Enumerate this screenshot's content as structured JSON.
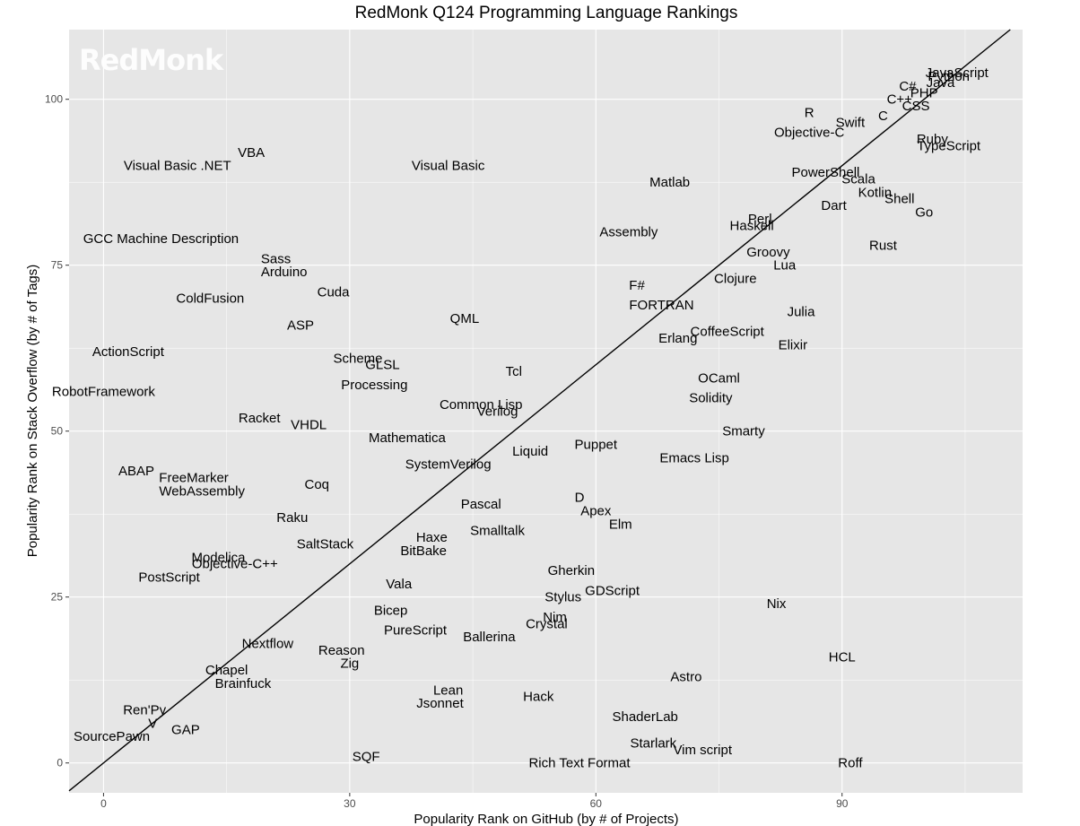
{
  "chart_data": {
    "type": "scatter",
    "title": "RedMonk Q124 Programming Language Rankings",
    "xlabel": "Popularity Rank on GitHub (by # of Projects)",
    "ylabel": "Popularity Rank on Stack Overflow (by # of Tags)",
    "watermark": "RedMonk",
    "xlim": [
      -4.2,
      112
    ],
    "ylim": [
      -4.5,
      110.5
    ],
    "xticks": [
      0,
      30,
      60,
      90
    ],
    "yticks": [
      0,
      25,
      50,
      75,
      100
    ],
    "grid": true,
    "reference_line": "y = x",
    "colors": {
      "panel": "#e6e6e6",
      "grid": "#ffffff",
      "text": "#000000",
      "tick_text": "#4d4d4d",
      "line": "#000000"
    },
    "points": [
      {
        "label": "JavaScript",
        "x": 104,
        "y": 104
      },
      {
        "label": "Python",
        "x": 103,
        "y": 103.5
      },
      {
        "label": "Java",
        "x": 102,
        "y": 102.5
      },
      {
        "label": "PHP",
        "x": 100,
        "y": 101
      },
      {
        "label": "C#",
        "x": 98,
        "y": 102
      },
      {
        "label": "C++",
        "x": 97,
        "y": 100
      },
      {
        "label": "CSS",
        "x": 99,
        "y": 99
      },
      {
        "label": "C",
        "x": 95,
        "y": 97.5
      },
      {
        "label": "R",
        "x": 86,
        "y": 98
      },
      {
        "label": "Swift",
        "x": 91,
        "y": 96.5
      },
      {
        "label": "Objective-C",
        "x": 86,
        "y": 95
      },
      {
        "label": "Ruby",
        "x": 101,
        "y": 94
      },
      {
        "label": "TypeScript",
        "x": 103,
        "y": 93
      },
      {
        "label": "PowerShell",
        "x": 88,
        "y": 89
      },
      {
        "label": "Scala",
        "x": 92,
        "y": 88
      },
      {
        "label": "Kotlin",
        "x": 94,
        "y": 86
      },
      {
        "label": "Matlab",
        "x": 69,
        "y": 87.5
      },
      {
        "label": "Shell",
        "x": 97,
        "y": 85
      },
      {
        "label": "Dart",
        "x": 89,
        "y": 84
      },
      {
        "label": "Go",
        "x": 100,
        "y": 83
      },
      {
        "label": "Perl",
        "x": 80,
        "y": 82
      },
      {
        "label": "Haskell",
        "x": 79,
        "y": 81
      },
      {
        "label": "Assembly",
        "x": 64,
        "y": 80
      },
      {
        "label": "Rust",
        "x": 95,
        "y": 78
      },
      {
        "label": "Groovy",
        "x": 81,
        "y": 77
      },
      {
        "label": "Lua",
        "x": 83,
        "y": 75
      },
      {
        "label": "Clojure",
        "x": 77,
        "y": 73
      },
      {
        "label": "F#",
        "x": 65,
        "y": 72
      },
      {
        "label": "FORTRAN",
        "x": 68,
        "y": 69
      },
      {
        "label": "Julia",
        "x": 85,
        "y": 68
      },
      {
        "label": "CoffeeScript",
        "x": 76,
        "y": 65
      },
      {
        "label": "Erlang",
        "x": 70,
        "y": 64
      },
      {
        "label": "Elixir",
        "x": 84,
        "y": 63
      },
      {
        "label": "OCaml",
        "x": 75,
        "y": 58
      },
      {
        "label": "Solidity",
        "x": 74,
        "y": 55
      },
      {
        "label": "Smarty",
        "x": 78,
        "y": 50
      },
      {
        "label": "Emacs Lisp",
        "x": 72,
        "y": 46
      },
      {
        "label": "Visual Basic",
        "x": 42,
        "y": 90
      },
      {
        "label": "VBA",
        "x": 18,
        "y": 92
      },
      {
        "label": "Visual Basic .NET",
        "x": 9,
        "y": 90
      },
      {
        "label": "GCC Machine Description",
        "x": 7,
        "y": 79
      },
      {
        "label": "Sass",
        "x": 21,
        "y": 76
      },
      {
        "label": "Arduino",
        "x": 22,
        "y": 74
      },
      {
        "label": "Cuda",
        "x": 28,
        "y": 71
      },
      {
        "label": "ColdFusion",
        "x": 13,
        "y": 70
      },
      {
        "label": "QML",
        "x": 44,
        "y": 67
      },
      {
        "label": "ASP",
        "x": 24,
        "y": 66
      },
      {
        "label": "ActionScript",
        "x": 3,
        "y": 62
      },
      {
        "label": "Scheme",
        "x": 31,
        "y": 61
      },
      {
        "label": "GLSL",
        "x": 34,
        "y": 60
      },
      {
        "label": "Tcl",
        "x": 50,
        "y": 59
      },
      {
        "label": "Processing",
        "x": 33,
        "y": 57
      },
      {
        "label": "RobotFramework",
        "x": 0,
        "y": 56
      },
      {
        "label": "Common Lisp",
        "x": 46,
        "y": 54
      },
      {
        "label": "Verilog",
        "x": 48,
        "y": 53
      },
      {
        "label": "Racket",
        "x": 19,
        "y": 52
      },
      {
        "label": "VHDL",
        "x": 25,
        "y": 51
      },
      {
        "label": "Mathematica",
        "x": 37,
        "y": 49
      },
      {
        "label": "Puppet",
        "x": 60,
        "y": 48
      },
      {
        "label": "Liquid",
        "x": 52,
        "y": 47
      },
      {
        "label": "SystemVerilog",
        "x": 42,
        "y": 45
      },
      {
        "label": "ABAP",
        "x": 4,
        "y": 44
      },
      {
        "label": "FreeMarker",
        "x": 11,
        "y": 43
      },
      {
        "label": "WebAssembly",
        "x": 12,
        "y": 41
      },
      {
        "label": "Coq",
        "x": 26,
        "y": 42
      },
      {
        "label": "D",
        "x": 58,
        "y": 40
      },
      {
        "label": "Pascal",
        "x": 46,
        "y": 39
      },
      {
        "label": "Apex",
        "x": 60,
        "y": 38
      },
      {
        "label": "Raku",
        "x": 23,
        "y": 37
      },
      {
        "label": "Elm",
        "x": 63,
        "y": 36
      },
      {
        "label": "Smalltalk",
        "x": 48,
        "y": 35
      },
      {
        "label": "Haxe",
        "x": 40,
        "y": 34
      },
      {
        "label": "SaltStack",
        "x": 27,
        "y": 33
      },
      {
        "label": "BitBake",
        "x": 39,
        "y": 32
      },
      {
        "label": "Modelica",
        "x": 14,
        "y": 31
      },
      {
        "label": "Objective-C++",
        "x": 16,
        "y": 30
      },
      {
        "label": "Gherkin",
        "x": 57,
        "y": 29
      },
      {
        "label": "PostScript",
        "x": 8,
        "y": 28
      },
      {
        "label": "Vala",
        "x": 36,
        "y": 27
      },
      {
        "label": "GDScript",
        "x": 62,
        "y": 26
      },
      {
        "label": "Stylus",
        "x": 56,
        "y": 25
      },
      {
        "label": "Nix",
        "x": 82,
        "y": 24
      },
      {
        "label": "Bicep",
        "x": 35,
        "y": 23
      },
      {
        "label": "Nim",
        "x": 55,
        "y": 22
      },
      {
        "label": "Crystal",
        "x": 54,
        "y": 21
      },
      {
        "label": "PureScript",
        "x": 38,
        "y": 20
      },
      {
        "label": "Ballerina",
        "x": 47,
        "y": 19
      },
      {
        "label": "Nextflow",
        "x": 20,
        "y": 18
      },
      {
        "label": "Reason",
        "x": 29,
        "y": 17
      },
      {
        "label": "HCL",
        "x": 90,
        "y": 16
      },
      {
        "label": "Zig",
        "x": 30,
        "y": 15
      },
      {
        "label": "Chapel",
        "x": 15,
        "y": 14
      },
      {
        "label": "Astro",
        "x": 71,
        "y": 13
      },
      {
        "label": "Brainfuck",
        "x": 17,
        "y": 12
      },
      {
        "label": "Lean",
        "x": 42,
        "y": 11
      },
      {
        "label": "Hack",
        "x": 53,
        "y": 10
      },
      {
        "label": "Jsonnet",
        "x": 41,
        "y": 9
      },
      {
        "label": "Ren'Py",
        "x": 5,
        "y": 8
      },
      {
        "label": "ShaderLab",
        "x": 66,
        "y": 7
      },
      {
        "label": "V",
        "x": 6,
        "y": 6
      },
      {
        "label": "GAP",
        "x": 10,
        "y": 5
      },
      {
        "label": "SourcePawn",
        "x": 1,
        "y": 4
      },
      {
        "label": "Starlark",
        "x": 67,
        "y": 3
      },
      {
        "label": "Vim script",
        "x": 73,
        "y": 2
      },
      {
        "label": "SQF",
        "x": 32,
        "y": 1
      },
      {
        "label": "Rich Text Format",
        "x": 58,
        "y": 0
      },
      {
        "label": "Roff",
        "x": 91,
        "y": 0
      }
    ]
  }
}
